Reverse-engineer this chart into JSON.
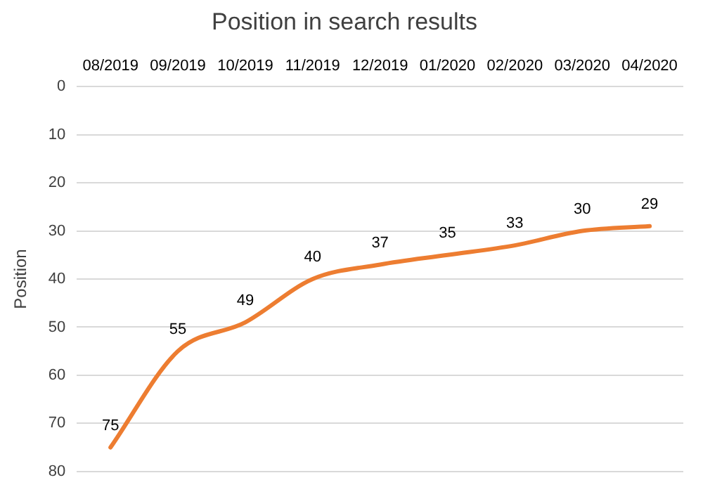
{
  "chart_data": {
    "type": "line",
    "title": "Position in search results",
    "ylabel": "Position",
    "categories": [
      "08/2019",
      "09/2019",
      "10/2019",
      "11/2019",
      "12/2019",
      "01/2020",
      "02/2020",
      "03/2020",
      "04/2020"
    ],
    "series": [
      {
        "color": "#ed7d31",
        "values": [
          75,
          55,
          49,
          40,
          37,
          35,
          33,
          30,
          29
        ]
      }
    ],
    "ylim": [
      80,
      0
    ],
    "yticks": [
      0,
      10,
      20,
      30,
      40,
      50,
      60,
      70,
      80
    ],
    "grid": "y",
    "legend": false,
    "marker": "none",
    "line_style": "solid",
    "data_labels": true
  }
}
